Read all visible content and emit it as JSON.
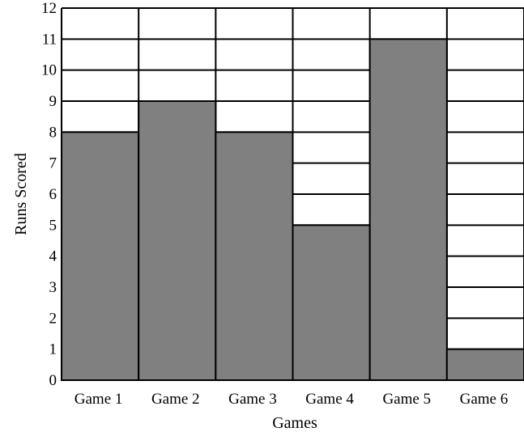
{
  "chart_data": {
    "type": "bar",
    "categories": [
      "Game 1",
      "Game 2",
      "Game 3",
      "Game 4",
      "Game 5",
      "Game 6"
    ],
    "values": [
      8,
      9,
      8,
      5,
      11,
      1
    ],
    "title": "",
    "xlabel": "Games",
    "ylabel": "Runs Scored",
    "ylim": [
      0,
      12
    ],
    "yticks": [
      0,
      1,
      2,
      3,
      4,
      5,
      6,
      7,
      8,
      9,
      10,
      11,
      12
    ],
    "grid": true,
    "bar_color": "#808080",
    "grid_color": "#000000",
    "background_color": "#ffffff"
  }
}
